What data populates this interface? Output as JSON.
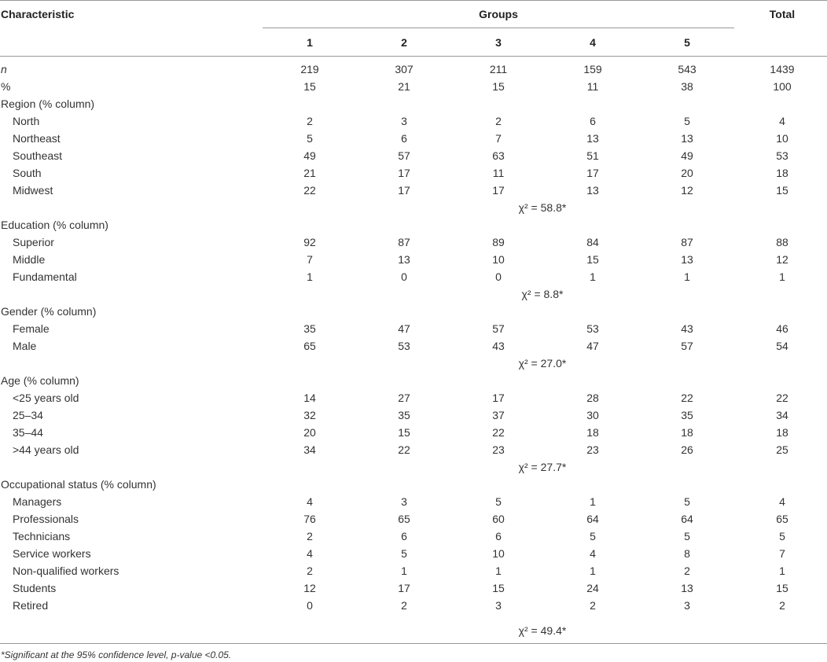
{
  "table": {
    "header": {
      "characteristic": "Characteristic",
      "groups": "Groups",
      "total": "Total",
      "group_numbers": [
        "1",
        "2",
        "3",
        "4",
        "5"
      ]
    },
    "rows": [
      {
        "type": "data",
        "label": "n",
        "italic": true,
        "values": [
          "219",
          "307",
          "211",
          "159",
          "543",
          "1439"
        ]
      },
      {
        "type": "data",
        "label": "%",
        "values": [
          "15",
          "21",
          "15",
          "11",
          "38",
          "100"
        ]
      },
      {
        "type": "section",
        "label": "Region (% column)"
      },
      {
        "type": "sub",
        "label": "North",
        "values": [
          "2",
          "3",
          "2",
          "6",
          "5",
          "4"
        ]
      },
      {
        "type": "sub",
        "label": "Northeast",
        "values": [
          "5",
          "6",
          "7",
          "13",
          "13",
          "10"
        ]
      },
      {
        "type": "sub",
        "label": "Southeast",
        "values": [
          "49",
          "57",
          "63",
          "51",
          "49",
          "53"
        ]
      },
      {
        "type": "sub",
        "label": "South",
        "values": [
          "21",
          "17",
          "11",
          "17",
          "20",
          "18"
        ]
      },
      {
        "type": "sub",
        "label": "Midwest",
        "values": [
          "22",
          "17",
          "17",
          "13",
          "12",
          "15"
        ]
      },
      {
        "type": "chi",
        "text": "χ² = 58.8*"
      },
      {
        "type": "section",
        "label": "Education (% column)"
      },
      {
        "type": "sub",
        "label": "Superior",
        "values": [
          "92",
          "87",
          "89",
          "84",
          "87",
          "88"
        ]
      },
      {
        "type": "sub",
        "label": "Middle",
        "values": [
          "7",
          "13",
          "10",
          "15",
          "13",
          "12"
        ]
      },
      {
        "type": "sub",
        "label": "Fundamental",
        "values": [
          "1",
          "0",
          "0",
          "1",
          "1",
          "1"
        ]
      },
      {
        "type": "chi",
        "text": "χ² = 8.8*"
      },
      {
        "type": "section",
        "label": "Gender (% column)"
      },
      {
        "type": "sub",
        "label": "Female",
        "values": [
          "35",
          "47",
          "57",
          "53",
          "43",
          "46"
        ]
      },
      {
        "type": "sub",
        "label": "Male",
        "values": [
          "65",
          "53",
          "43",
          "47",
          "57",
          "54"
        ]
      },
      {
        "type": "chi",
        "text": "χ² = 27.0*"
      },
      {
        "type": "section",
        "label": "Age (% column)"
      },
      {
        "type": "sub",
        "label": "<25 years old",
        "values": [
          "14",
          "27",
          "17",
          "28",
          "22",
          "22"
        ]
      },
      {
        "type": "sub",
        "label": "25–34",
        "values": [
          "32",
          "35",
          "37",
          "30",
          "35",
          "34"
        ]
      },
      {
        "type": "sub",
        "label": "35–44",
        "values": [
          "20",
          "15",
          "22",
          "18",
          "18",
          "18"
        ]
      },
      {
        "type": "sub",
        "label": ">44 years old",
        "values": [
          "34",
          "22",
          "23",
          "23",
          "26",
          "25"
        ]
      },
      {
        "type": "chi",
        "text": "χ² = 27.7*"
      },
      {
        "type": "section",
        "label": "Occupational status (% column)"
      },
      {
        "type": "sub",
        "label": "Managers",
        "values": [
          "4",
          "3",
          "5",
          "1",
          "5",
          "4"
        ]
      },
      {
        "type": "sub",
        "label": "Professionals",
        "values": [
          "76",
          "65",
          "60",
          "64",
          "64",
          "65"
        ]
      },
      {
        "type": "sub",
        "label": "Technicians",
        "values": [
          "2",
          "6",
          "6",
          "5",
          "5",
          "5"
        ]
      },
      {
        "type": "sub",
        "label": "Service workers",
        "values": [
          "4",
          "5",
          "10",
          "4",
          "8",
          "7"
        ]
      },
      {
        "type": "sub",
        "label": "Non-qualified workers",
        "values": [
          "2",
          "1",
          "1",
          "1",
          "2",
          "1"
        ]
      },
      {
        "type": "sub",
        "label": "Students",
        "values": [
          "12",
          "17",
          "15",
          "24",
          "13",
          "15"
        ]
      },
      {
        "type": "sub",
        "label": "Retired",
        "values": [
          "0",
          "2",
          "3",
          "2",
          "3",
          "2"
        ]
      },
      {
        "type": "chi",
        "text": "χ² = 49.4*",
        "gap": true
      }
    ],
    "footnote": "*Significant at the 95% confidence level, p-value <0.05."
  }
}
